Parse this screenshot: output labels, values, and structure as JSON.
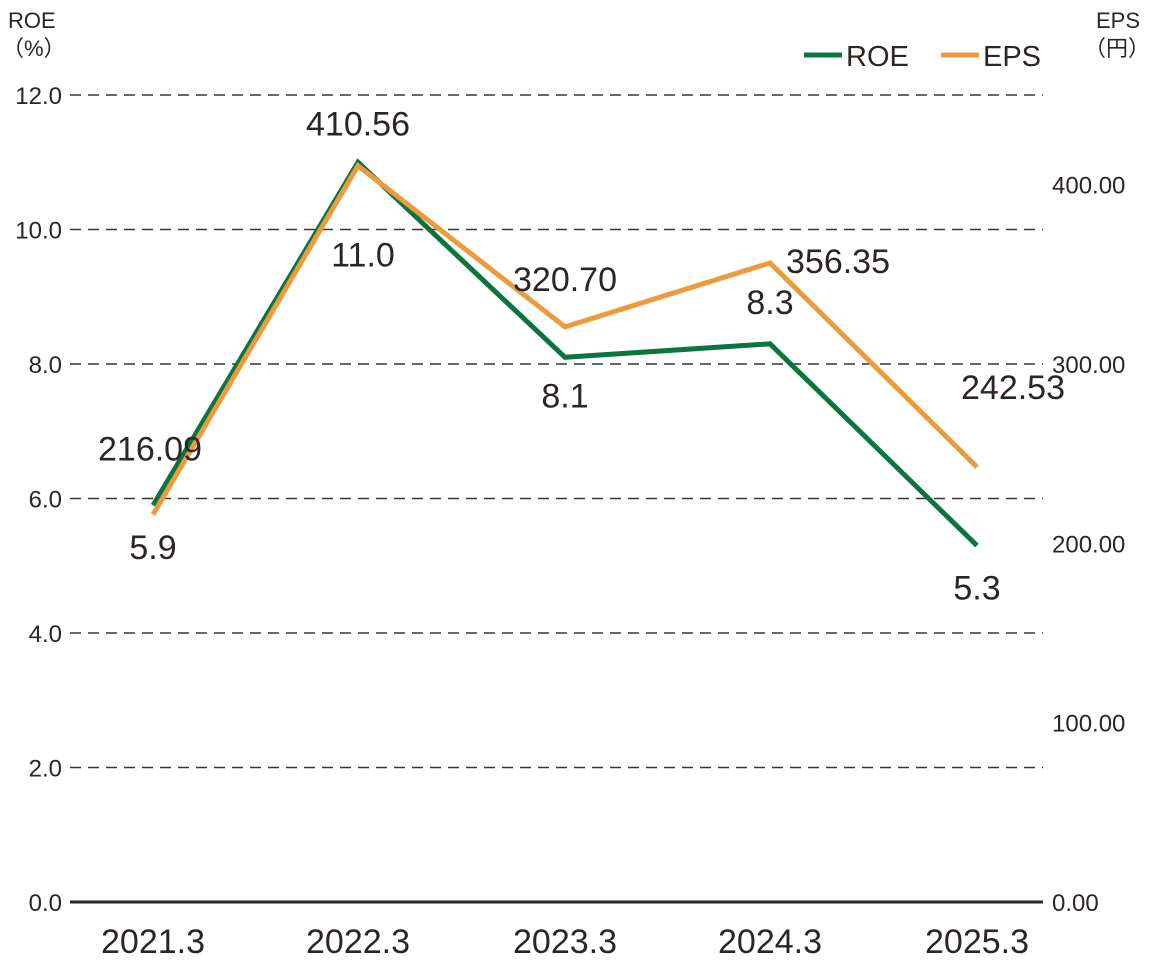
{
  "chart_data": {
    "type": "line",
    "title": "",
    "categories": [
      "2021.3",
      "2022.3",
      "2023.3",
      "2024.3",
      "2025.3"
    ],
    "series": [
      {
        "name": "ROE",
        "axis": "left",
        "color": "#0b7440",
        "values": [
          5.9,
          11.0,
          8.1,
          8.3,
          5.3
        ],
        "labels": [
          "5.9",
          "11.0",
          "8.1",
          "8.3",
          "5.3"
        ]
      },
      {
        "name": "EPS",
        "axis": "right",
        "color": "#ec9a3c",
        "values": [
          216.09,
          410.56,
          320.7,
          356.35,
          242.53
        ],
        "labels": [
          "216.09",
          "410.56",
          "320.70",
          "356.35",
          "242.53"
        ]
      }
    ],
    "y_left": {
      "label_line1": "ROE",
      "label_line2": "（%）",
      "range": [
        0,
        12
      ],
      "ticks": [
        0,
        2,
        4,
        6,
        8,
        10,
        12
      ],
      "tick_labels": [
        "0.0",
        "2.0",
        "4.0",
        "6.0",
        "8.0",
        "10.0",
        "12.0"
      ]
    },
    "y_right": {
      "label_line1": "EPS",
      "label_line2": "（円）",
      "range": [
        0,
        450
      ],
      "ticks": [
        0,
        100,
        200,
        300,
        400
      ],
      "tick_labels": [
        "0.00",
        "100.00",
        "200.00",
        "300.00",
        "400.00"
      ]
    },
    "grid": "dashed horizontal at left-axis ticks",
    "legend": {
      "position": "top-right",
      "entries": [
        "ROE",
        "EPS"
      ]
    }
  },
  "colors": {
    "roe": "#0b7440",
    "eps": "#ec9a3c",
    "text": "#2b2523",
    "grid": "#3a3330"
  }
}
